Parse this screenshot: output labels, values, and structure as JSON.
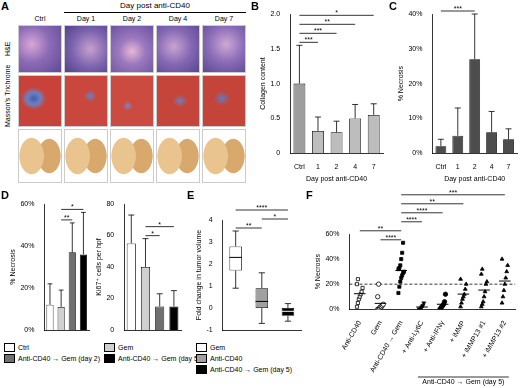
{
  "image_panel": {
    "panel": "A",
    "title": "Day post anti-CD40",
    "columns": [
      "Ctrl",
      "Day 1",
      "Day 2",
      "Day 4",
      "Day 7"
    ],
    "rows": [
      "H&E",
      "Masson's Trichrome"
    ]
  },
  "chart_data": [
    {
      "panel": "B",
      "type": "bar",
      "y_label": "Collagen content",
      "x_label": "Day post anti-CD40",
      "categories": [
        "Ctrl",
        "1",
        "2",
        "4",
        "7"
      ],
      "values": [
        1.0,
        0.32,
        0.3,
        0.5,
        0.55
      ],
      "errors": [
        0.55,
        0.2,
        0.16,
        0.2,
        0.16
      ],
      "colors": [
        "#9e9e9e",
        "#bdbdbd",
        "#bdbdbd",
        "#bdbdbd",
        "#bdbdbd"
      ],
      "ylim": [
        0,
        2
      ],
      "yticks": [
        0,
        0.5,
        {
          "value": 1,
          "label": "1.0"
        },
        1.5,
        {
          "value": 2,
          "label": "2.0"
        }
      ],
      "grid": false,
      "annotations": [
        {
          "from": "Ctrl",
          "to": "1",
          "label": "***"
        },
        {
          "from": "Ctrl",
          "to": "2",
          "label": "***"
        },
        {
          "from": "Ctrl",
          "to": "4",
          "label": "**"
        },
        {
          "from": "Ctrl",
          "to": "7",
          "label": "*"
        }
      ]
    },
    {
      "panel": "C",
      "type": "bar",
      "y_label": "% Necrosis",
      "x_label": "Day post anti-CD40",
      "categories": [
        "Ctrl",
        "1",
        "2",
        "4",
        "7"
      ],
      "values": [
        2,
        5,
        27,
        6,
        4
      ],
      "errors": [
        2,
        8,
        13,
        6,
        3
      ],
      "color": "#4d4d4d",
      "ylim": [
        0,
        40
      ],
      "yticks": [
        {
          "value": 0,
          "label": "0%"
        },
        {
          "value": 10,
          "label": "10%"
        },
        {
          "value": 20,
          "label": "20%"
        },
        {
          "value": 30,
          "label": "30%"
        },
        {
          "value": 40,
          "label": "40%"
        }
      ],
      "grid": false,
      "annotations": [
        {
          "from": "Ctrl",
          "to": "2",
          "label": "***"
        }
      ]
    },
    {
      "panel": "D",
      "type": "bar",
      "y_label": "% Necrosis",
      "categories": [
        "Ctrl",
        "Gem",
        "Anti-CD40 → Gem (day 2)",
        "Anti-CD40 → Gem (day 5)"
      ],
      "values": [
        12,
        11,
        37,
        36
      ],
      "errors": [
        10,
        8,
        14,
        20
      ],
      "colors": [
        "#ffffff",
        "#d0d0d0",
        "#707070",
        "#000000"
      ],
      "ylim": [
        0,
        60
      ],
      "yticks": [
        {
          "value": 0,
          "label": "0%"
        },
        {
          "value": 20,
          "label": "20%"
        },
        {
          "value": 40,
          "label": "40%"
        },
        {
          "value": 60,
          "label": "60%"
        }
      ],
      "grid": false,
      "tick_labels": "y",
      "legend": "bottom",
      "annotations": [
        {
          "from": "Gem",
          "to": "Anti-CD40 → Gem (day 2)",
          "label": "**"
        },
        {
          "from": "Gem",
          "to": "Anti-CD40 → Gem (day 5)",
          "label": "*"
        }
      ]
    },
    {
      "type": "bar",
      "y_label": "Ki67⁺ cells per hpf",
      "categories": [
        "Ctrl",
        "Gem",
        "Anti-CD40 → Gem (day 2)",
        "Anti-CD40 → Gem (day 5)"
      ],
      "values": [
        55,
        40,
        15,
        15
      ],
      "errors": [
        18,
        18,
        8,
        10
      ],
      "colors": [
        "#ffffff",
        "#d0d0d0",
        "#707070",
        "#000000"
      ],
      "ylim": [
        0,
        80
      ],
      "yticks": [
        0,
        20,
        40,
        60,
        80
      ],
      "grid": false,
      "tick_labels": "y",
      "annotations": [
        {
          "from": "Gem",
          "to": "Anti-CD40 → Gem (day 2)",
          "label": "*"
        },
        {
          "from": "Gem",
          "to": "Anti-CD40 → Gem (day 5)",
          "label": "*"
        }
      ]
    },
    {
      "panel": "E",
      "type": "box",
      "y_label": "Fold change in tumor volume",
      "categories": [
        "Gem",
        "Anti-CD40",
        "Anti-CD40 → Gem (day 5)"
      ],
      "boxes": [
        {
          "min": 0.9,
          "q1": 1.7,
          "median": 2.3,
          "q3": 2.8,
          "max": 3.5
        },
        {
          "min": -0.7,
          "q1": 0,
          "median": 0.3,
          "q3": 0.9,
          "max": 1.6
        },
        {
          "min": -0.6,
          "q1": -0.35,
          "median": -0.15,
          "q3": 0,
          "max": 0.2
        }
      ],
      "colors": [
        "#ffffff",
        "#a0a0a0",
        "#000000"
      ],
      "ylim": [
        -1,
        4
      ],
      "yticks": [
        -1,
        0,
        1,
        2,
        3,
        4
      ],
      "grid": false,
      "tick_labels": "y",
      "legend": "bottom",
      "annotations": [
        {
          "from": "Gem",
          "to": "Anti-CD40",
          "label": "**"
        },
        {
          "from": "Anti-CD40",
          "to": "Anti-CD40 → Gem (day 5)",
          "label": "*"
        },
        {
          "from": "Gem",
          "to": "Anti-CD40 → Gem (day 5)",
          "label": "****"
        }
      ]
    },
    {
      "panel": "F",
      "type": "scatter",
      "y_label": "% Necrosis",
      "color": "#000000",
      "series": [
        {
          "name": "Anti-CD40",
          "marker": "square-open",
          "values": [
            2,
            5,
            8,
            10,
            12,
            14,
            17,
            20,
            24
          ],
          "mean": 12.4
        },
        {
          "name": "Gem",
          "marker": "circle-open",
          "values": [
            0,
            0,
            1,
            2,
            2,
            3,
            4,
            10,
            20
          ],
          "mean": 4.7
        },
        {
          "name": "Anti-CD40 → Gem",
          "marker": "square",
          "values": [
            13,
            18,
            22,
            25,
            27,
            29,
            30,
            32,
            33,
            35,
            40,
            45,
            53
          ],
          "mean": 30.9
        },
        {
          "name": "+ Anti-Ly6C",
          "marker": "triangle-down",
          "values": [
            0,
            0,
            1,
            2,
            3,
            5
          ],
          "mean": 1.8
        },
        {
          "name": "+ Anti-IFNγ",
          "marker": "circle",
          "values": [
            0,
            1,
            2,
            3,
            4,
            6,
            12
          ],
          "mean": 4
        },
        {
          "name": "+ iMMP",
          "marker": "triangle",
          "values": [
            2,
            5,
            8,
            10,
            12,
            16,
            20,
            24
          ],
          "mean": 12.1
        },
        {
          "name": "+ iMMP13 #1",
          "marker": "triangle",
          "values": [
            2,
            4,
            6,
            10,
            14,
            20,
            22,
            28,
            32
          ],
          "mean": 15.3
        },
        {
          "name": "+ iMMP13 #2",
          "marker": "triangle",
          "values": [
            5,
            10,
            15,
            20,
            25,
            30,
            35,
            40
          ],
          "mean": 22.5
        }
      ],
      "ylim": [
        0,
        60
      ],
      "yticks": [
        {
          "value": 0,
          "label": "0%"
        },
        {
          "value": 20,
          "label": "20%"
        },
        {
          "value": 40,
          "label": "40%"
        },
        {
          "value": 60,
          "label": "60%"
        }
      ],
      "grid": false,
      "reference_lines": [
        {
          "value": 20,
          "line_style": "dashed"
        }
      ],
      "x_group": {
        "label": "Anti-CD40 → Gem (day 5)",
        "from": "+ Anti-Ly6C",
        "to": "+ iMMP13 #2"
      },
      "annotations": [
        {
          "from": "Gem",
          "to": "Anti-CD40 → Gem",
          "label": "****"
        },
        {
          "from": "Anti-CD40",
          "to": "Anti-CD40 → Gem",
          "label": "**"
        },
        {
          "from": "Anti-CD40 → Gem",
          "to": "+ Anti-Ly6C",
          "label": "****"
        },
        {
          "from": "Anti-CD40 → Gem",
          "to": "+ Anti-IFNγ",
          "label": "****"
        },
        {
          "from": "Anti-CD40 → Gem",
          "to": "+ iMMP",
          "label": "**"
        },
        {
          "from": "Anti-CD40 → Gem",
          "to": "+ iMMP13 #2",
          "label": "***"
        }
      ]
    }
  ]
}
